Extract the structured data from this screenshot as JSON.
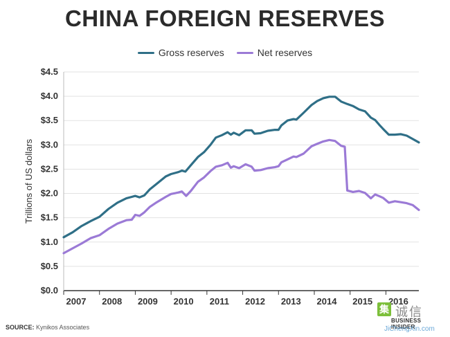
{
  "source_label": "SOURCE:",
  "source_text": "Kynikos Associates",
  "watermark": {
    "logo_char": "集",
    "cn_text": "诚信",
    "brand": "BUSINESS INSIDER",
    "url": "JiChengXin.com"
  },
  "colors": {
    "gross": "#2f6f87",
    "net": "#9b7ad6",
    "grid": "#e2e2e2",
    "axis": "#333333"
  },
  "chart_data": {
    "type": "line",
    "title": "CHINA FOREIGN RESERVES",
    "xlabel": "",
    "ylabel": "Trillions of US dollars",
    "xlim": [
      2007.0,
      2016.92
    ],
    "ylim": [
      0.0,
      4.5
    ],
    "y_ticks": [
      0.0,
      0.5,
      1.0,
      1.5,
      2.0,
      2.5,
      3.0,
      3.5,
      4.0,
      4.5
    ],
    "y_tick_labels": [
      "$0.0",
      "$0.5",
      "$1.0",
      "$1.5",
      "$2.0",
      "$2.5",
      "$3.0",
      "$3.5",
      "$4.0",
      "$4.5"
    ],
    "x_ticks": [
      2007,
      2008,
      2009,
      2010,
      2011,
      2012,
      2013,
      2014,
      2015,
      2016
    ],
    "x_tick_labels": [
      "2007",
      "2008",
      "2009",
      "2010",
      "2011",
      "2012",
      "2013",
      "2014",
      "2015",
      "2016"
    ],
    "grid": "horizontal",
    "legend_position": "top-center",
    "series": [
      {
        "name": "Gross reserves",
        "points": [
          [
            2007.0,
            1.1
          ],
          [
            2007.25,
            1.2
          ],
          [
            2007.5,
            1.33
          ],
          [
            2007.75,
            1.43
          ],
          [
            2008.0,
            1.52
          ],
          [
            2008.25,
            1.68
          ],
          [
            2008.5,
            1.81
          ],
          [
            2008.75,
            1.9
          ],
          [
            2008.9,
            1.93
          ],
          [
            2009.0,
            1.95
          ],
          [
            2009.12,
            1.92
          ],
          [
            2009.25,
            1.96
          ],
          [
            2009.4,
            2.08
          ],
          [
            2009.6,
            2.2
          ],
          [
            2009.85,
            2.35
          ],
          [
            2010.0,
            2.4
          ],
          [
            2010.2,
            2.44
          ],
          [
            2010.3,
            2.47
          ],
          [
            2010.4,
            2.45
          ],
          [
            2010.55,
            2.58
          ],
          [
            2010.75,
            2.75
          ],
          [
            2010.92,
            2.85
          ],
          [
            2011.1,
            3.0
          ],
          [
            2011.25,
            3.15
          ],
          [
            2011.42,
            3.2
          ],
          [
            2011.58,
            3.26
          ],
          [
            2011.67,
            3.21
          ],
          [
            2011.75,
            3.25
          ],
          [
            2011.9,
            3.2
          ],
          [
            2012.08,
            3.3
          ],
          [
            2012.25,
            3.3
          ],
          [
            2012.33,
            3.23
          ],
          [
            2012.5,
            3.24
          ],
          [
            2012.7,
            3.29
          ],
          [
            2012.9,
            3.31
          ],
          [
            2013.0,
            3.31
          ],
          [
            2013.08,
            3.4
          ],
          [
            2013.25,
            3.5
          ],
          [
            2013.42,
            3.53
          ],
          [
            2013.5,
            3.52
          ],
          [
            2013.7,
            3.66
          ],
          [
            2013.92,
            3.82
          ],
          [
            2014.08,
            3.9
          ],
          [
            2014.25,
            3.96
          ],
          [
            2014.42,
            3.99
          ],
          [
            2014.58,
            3.99
          ],
          [
            2014.75,
            3.89
          ],
          [
            2014.92,
            3.84
          ],
          [
            2015.08,
            3.8
          ],
          [
            2015.25,
            3.73
          ],
          [
            2015.42,
            3.69
          ],
          [
            2015.58,
            3.56
          ],
          [
            2015.7,
            3.51
          ],
          [
            2015.83,
            3.4
          ],
          [
            2015.92,
            3.33
          ],
          [
            2016.08,
            3.21
          ],
          [
            2016.25,
            3.21
          ],
          [
            2016.42,
            3.22
          ],
          [
            2016.58,
            3.19
          ],
          [
            2016.75,
            3.12
          ],
          [
            2016.92,
            3.05
          ]
        ]
      },
      {
        "name": "Net reserves",
        "points": [
          [
            2007.0,
            0.77
          ],
          [
            2007.25,
            0.87
          ],
          [
            2007.5,
            0.97
          ],
          [
            2007.75,
            1.08
          ],
          [
            2008.0,
            1.14
          ],
          [
            2008.25,
            1.27
          ],
          [
            2008.5,
            1.38
          ],
          [
            2008.75,
            1.45
          ],
          [
            2008.9,
            1.46
          ],
          [
            2009.0,
            1.56
          ],
          [
            2009.12,
            1.54
          ],
          [
            2009.25,
            1.61
          ],
          [
            2009.4,
            1.72
          ],
          [
            2009.6,
            1.82
          ],
          [
            2009.85,
            1.93
          ],
          [
            2010.0,
            1.99
          ],
          [
            2010.2,
            2.02
          ],
          [
            2010.3,
            2.04
          ],
          [
            2010.42,
            1.95
          ],
          [
            2010.55,
            2.05
          ],
          [
            2010.75,
            2.24
          ],
          [
            2010.92,
            2.33
          ],
          [
            2011.1,
            2.46
          ],
          [
            2011.25,
            2.55
          ],
          [
            2011.42,
            2.58
          ],
          [
            2011.58,
            2.63
          ],
          [
            2011.67,
            2.53
          ],
          [
            2011.75,
            2.56
          ],
          [
            2011.9,
            2.52
          ],
          [
            2012.08,
            2.6
          ],
          [
            2012.25,
            2.55
          ],
          [
            2012.33,
            2.47
          ],
          [
            2012.5,
            2.48
          ],
          [
            2012.7,
            2.52
          ],
          [
            2012.9,
            2.54
          ],
          [
            2013.0,
            2.56
          ],
          [
            2013.08,
            2.64
          ],
          [
            2013.25,
            2.7
          ],
          [
            2013.42,
            2.76
          ],
          [
            2013.5,
            2.75
          ],
          [
            2013.7,
            2.82
          ],
          [
            2013.92,
            2.97
          ],
          [
            2014.08,
            3.02
          ],
          [
            2014.25,
            3.07
          ],
          [
            2014.42,
            3.1
          ],
          [
            2014.58,
            3.08
          ],
          [
            2014.75,
            2.98
          ],
          [
            2014.85,
            2.96
          ],
          [
            2014.92,
            2.06
          ],
          [
            2015.08,
            2.03
          ],
          [
            2015.25,
            2.05
          ],
          [
            2015.42,
            2.01
          ],
          [
            2015.58,
            1.9
          ],
          [
            2015.7,
            1.98
          ],
          [
            2015.83,
            1.94
          ],
          [
            2015.92,
            1.91
          ],
          [
            2016.08,
            1.81
          ],
          [
            2016.25,
            1.84
          ],
          [
            2016.42,
            1.82
          ],
          [
            2016.58,
            1.8
          ],
          [
            2016.75,
            1.76
          ],
          [
            2016.92,
            1.66
          ]
        ]
      }
    ]
  }
}
